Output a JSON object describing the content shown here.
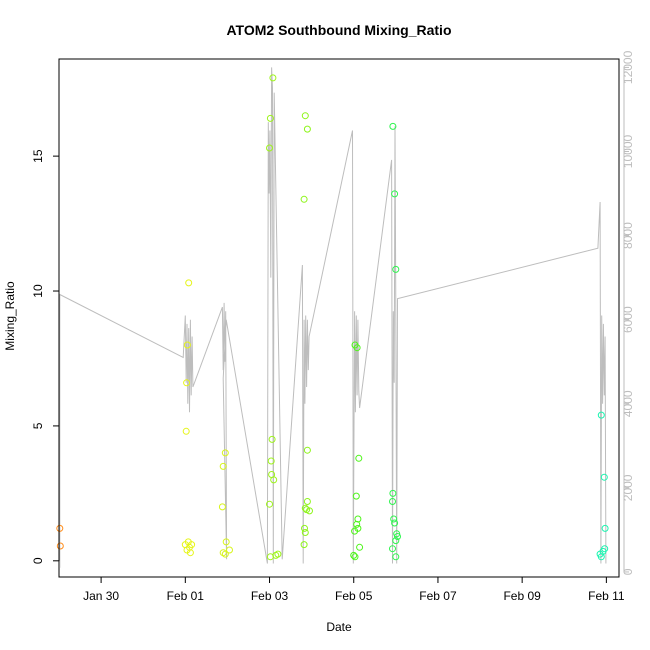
{
  "chart_data": {
    "type": "scatter",
    "title": "ATOM2 Southbound Mixing_Ratio",
    "xlabel": "Date",
    "ylabel": "Mixing_Ratio",
    "xlim_days": [
      -2.0,
      11.3
    ],
    "ylim": [
      -0.6,
      18.6
    ],
    "y2lim": [
      -120,
      12200
    ],
    "x_ticks": [
      {
        "day": -1,
        "label": "Jan 30"
      },
      {
        "day": 1,
        "label": "Feb 01"
      },
      {
        "day": 3,
        "label": "Feb 03"
      },
      {
        "day": 5,
        "label": "Feb 05"
      },
      {
        "day": 7,
        "label": "Feb 07"
      },
      {
        "day": 9,
        "label": "Feb 09"
      },
      {
        "day": 11,
        "label": "Feb 11"
      }
    ],
    "y_ticks": [
      0,
      5,
      10,
      15
    ],
    "y2_ticks": [
      0,
      2000,
      4000,
      6000,
      8000,
      10000,
      12000
    ],
    "point_color_note": "color encodes time (orange to cyan)",
    "points": [
      {
        "day": -1.98,
        "y": 1.2,
        "color": "#ff8c1a"
      },
      {
        "day": -1.97,
        "y": 0.55,
        "color": "#ff8c1a"
      },
      {
        "day": 1.02,
        "y": 4.8,
        "color": "#e6f51a"
      },
      {
        "day": 1.03,
        "y": 6.6,
        "color": "#e6f51a"
      },
      {
        "day": 1.05,
        "y": 8.0,
        "color": "#e6f51a"
      },
      {
        "day": 1.08,
        "y": 10.3,
        "color": "#e6f51a"
      },
      {
        "day": 1.0,
        "y": 0.6,
        "color": "#e6f51a"
      },
      {
        "day": 1.04,
        "y": 0.4,
        "color": "#e6f51a"
      },
      {
        "day": 1.07,
        "y": 0.7,
        "color": "#e6f51a"
      },
      {
        "day": 1.1,
        "y": 0.5,
        "color": "#e6f51a"
      },
      {
        "day": 1.12,
        "y": 0.3,
        "color": "#e6f51a"
      },
      {
        "day": 1.15,
        "y": 0.6,
        "color": "#e6f51a"
      },
      {
        "day": 1.88,
        "y": 2.0,
        "color": "#d8f51a"
      },
      {
        "day": 1.9,
        "y": 3.5,
        "color": "#d8f51a"
      },
      {
        "day": 1.95,
        "y": 4.0,
        "color": "#d8f51a"
      },
      {
        "day": 1.97,
        "y": 0.7,
        "color": "#d8f51a"
      },
      {
        "day": 1.9,
        "y": 0.3,
        "color": "#d8f51a"
      },
      {
        "day": 1.95,
        "y": 0.25,
        "color": "#d8f51a"
      },
      {
        "day": 2.05,
        "y": 0.4,
        "color": "#d8f51a"
      },
      {
        "day": 3.0,
        "y": 15.3,
        "color": "#9ef51a"
      },
      {
        "day": 3.02,
        "y": 16.4,
        "color": "#9ef51a"
      },
      {
        "day": 3.08,
        "y": 17.9,
        "color": "#9ef51a"
      },
      {
        "day": 3.06,
        "y": 4.5,
        "color": "#9ef51a"
      },
      {
        "day": 3.04,
        "y": 3.7,
        "color": "#9ef51a"
      },
      {
        "day": 3.05,
        "y": 3.2,
        "color": "#9ef51a"
      },
      {
        "day": 3.1,
        "y": 3.0,
        "color": "#9ef51a"
      },
      {
        "day": 3.0,
        "y": 2.1,
        "color": "#9ef51a"
      },
      {
        "day": 3.02,
        "y": 0.15,
        "color": "#9ef51a"
      },
      {
        "day": 3.15,
        "y": 0.2,
        "color": "#9ef51a"
      },
      {
        "day": 3.2,
        "y": 0.25,
        "color": "#9ef51a"
      },
      {
        "day": 3.85,
        "y": 16.5,
        "color": "#8ef51a"
      },
      {
        "day": 3.9,
        "y": 16.0,
        "color": "#8ef51a"
      },
      {
        "day": 3.82,
        "y": 13.4,
        "color": "#8ef51a"
      },
      {
        "day": 3.9,
        "y": 4.1,
        "color": "#8ef51a"
      },
      {
        "day": 3.9,
        "y": 2.2,
        "color": "#8ef51a"
      },
      {
        "day": 3.85,
        "y": 1.95,
        "color": "#8ef51a"
      },
      {
        "day": 3.88,
        "y": 1.9,
        "color": "#8ef51a"
      },
      {
        "day": 3.95,
        "y": 1.85,
        "color": "#8ef51a"
      },
      {
        "day": 3.83,
        "y": 1.2,
        "color": "#8ef51a"
      },
      {
        "day": 3.85,
        "y": 1.05,
        "color": "#8ef51a"
      },
      {
        "day": 3.82,
        "y": 0.6,
        "color": "#8ef51a"
      },
      {
        "day": 5.03,
        "y": 8.0,
        "color": "#4ef51a"
      },
      {
        "day": 5.08,
        "y": 7.9,
        "color": "#4ef51a"
      },
      {
        "day": 5.12,
        "y": 3.8,
        "color": "#4ef51a"
      },
      {
        "day": 5.06,
        "y": 2.4,
        "color": "#4ef51a"
      },
      {
        "day": 5.1,
        "y": 1.55,
        "color": "#4ef51a"
      },
      {
        "day": 5.07,
        "y": 1.35,
        "color": "#4ef51a"
      },
      {
        "day": 5.1,
        "y": 1.2,
        "color": "#4ef51a"
      },
      {
        "day": 5.02,
        "y": 1.1,
        "color": "#4ef51a"
      },
      {
        "day": 5.14,
        "y": 0.5,
        "color": "#4ef51a"
      },
      {
        "day": 5.0,
        "y": 0.2,
        "color": "#4ef51a"
      },
      {
        "day": 5.03,
        "y": 0.15,
        "color": "#4ef51a"
      },
      {
        "day": 5.93,
        "y": 16.1,
        "color": "#2ef54e"
      },
      {
        "day": 5.97,
        "y": 13.6,
        "color": "#2ef54e"
      },
      {
        "day": 6.0,
        "y": 10.8,
        "color": "#2ef54e"
      },
      {
        "day": 5.93,
        "y": 2.5,
        "color": "#2ef54e"
      },
      {
        "day": 5.92,
        "y": 2.2,
        "color": "#2ef54e"
      },
      {
        "day": 5.95,
        "y": 1.55,
        "color": "#2ef54e"
      },
      {
        "day": 5.97,
        "y": 1.4,
        "color": "#2ef54e"
      },
      {
        "day": 6.02,
        "y": 1.0,
        "color": "#2ef54e"
      },
      {
        "day": 6.04,
        "y": 0.9,
        "color": "#2ef54e"
      },
      {
        "day": 6.0,
        "y": 0.75,
        "color": "#2ef54e"
      },
      {
        "day": 5.92,
        "y": 0.45,
        "color": "#2ef54e"
      },
      {
        "day": 6.0,
        "y": 0.15,
        "color": "#2ef54e"
      },
      {
        "day": 10.88,
        "y": 5.4,
        "color": "#1af5b0"
      },
      {
        "day": 10.95,
        "y": 3.1,
        "color": "#1af5b0"
      },
      {
        "day": 10.97,
        "y": 1.2,
        "color": "#1af5b0"
      },
      {
        "day": 10.96,
        "y": 0.45,
        "color": "#1af5b0"
      },
      {
        "day": 10.92,
        "y": 0.35,
        "color": "#1af5b0"
      },
      {
        "day": 10.85,
        "y": 0.25,
        "color": "#1af5b0"
      },
      {
        "day": 10.88,
        "y": 0.15,
        "color": "#1af5b0"
      }
    ],
    "secondary_line": {
      "color": "#bdbdbd",
      "points": [
        [
          -1.98,
          100
        ],
        [
          -1.98,
          6600
        ],
        [
          0.95,
          5100
        ],
        [
          1.0,
          6100
        ],
        [
          1.02,
          4500
        ],
        [
          1.04,
          5900
        ],
        [
          1.06,
          4000
        ],
        [
          1.08,
          5800
        ],
        [
          1.1,
          3800
        ],
        [
          1.12,
          6000
        ],
        [
          1.14,
          4200
        ],
        [
          1.16,
          5600
        ],
        [
          1.18,
          4400
        ],
        [
          1.88,
          6300
        ],
        [
          1.9,
          4800
        ],
        [
          1.92,
          6400
        ],
        [
          1.94,
          5000
        ],
        [
          1.96,
          6200
        ],
        [
          1.98,
          300
        ],
        [
          1.9,
          4600
        ],
        [
          1.97,
          6000
        ],
        [
          2.95,
          200
        ],
        [
          2.97,
          10700
        ],
        [
          2.99,
          9000
        ],
        [
          3.01,
          10500
        ],
        [
          3.03,
          7000
        ],
        [
          3.05,
          12000
        ],
        [
          3.07,
          11500
        ],
        [
          3.09,
          200
        ],
        [
          3.11,
          11400
        ],
        [
          3.3,
          300
        ],
        [
          3.78,
          7300
        ],
        [
          3.8,
          200
        ],
        [
          3.82,
          6000
        ],
        [
          3.84,
          4000
        ],
        [
          3.86,
          6100
        ],
        [
          3.88,
          4400
        ],
        [
          3.9,
          6000
        ],
        [
          3.92,
          4800
        ],
        [
          3.94,
          5600
        ],
        [
          4.97,
          10500
        ],
        [
          4.99,
          200
        ],
        [
          5.02,
          6200
        ],
        [
          5.04,
          3800
        ],
        [
          5.06,
          6100
        ],
        [
          5.08,
          4200
        ],
        [
          5.1,
          6000
        ],
        [
          5.12,
          4300
        ],
        [
          5.14,
          3900
        ],
        [
          5.9,
          9800
        ],
        [
          5.92,
          200
        ],
        [
          5.94,
          6200
        ],
        [
          5.96,
          4500
        ],
        [
          5.98,
          10600
        ],
        [
          6.0,
          6300
        ],
        [
          6.02,
          200
        ],
        [
          6.04,
          6500
        ],
        [
          10.8,
          7700
        ],
        [
          10.85,
          8800
        ],
        [
          10.87,
          200
        ],
        [
          10.89,
          6100
        ],
        [
          10.91,
          4000
        ],
        [
          10.93,
          5900
        ],
        [
          10.95,
          4200
        ],
        [
          10.97,
          5600
        ],
        [
          10.99,
          200
        ]
      ]
    }
  }
}
